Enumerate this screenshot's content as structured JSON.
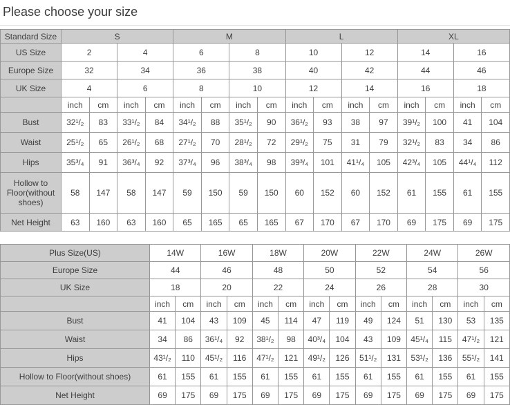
{
  "title": "Please choose your size",
  "colors": {
    "header_bg": "#cdcdcd",
    "border": "#979797",
    "text": "#3e3e3e"
  },
  "standard_table": {
    "header_label": "Standard Size",
    "size_groups": [
      "S",
      "M",
      "L",
      "XL"
    ],
    "us_size": {
      "label": "US Size",
      "values": [
        "2",
        "4",
        "6",
        "8",
        "10",
        "12",
        "14",
        "16"
      ]
    },
    "europe_size": {
      "label": "Europe Size",
      "values": [
        "32",
        "34",
        "36",
        "38",
        "40",
        "42",
        "44",
        "46"
      ]
    },
    "uk_size": {
      "label": "UK Size",
      "values": [
        "4",
        "6",
        "8",
        "10",
        "12",
        "14",
        "16",
        "18"
      ]
    },
    "units": [
      "inch",
      "cm",
      "inch",
      "cm",
      "inch",
      "cm",
      "inch",
      "cm",
      "inch",
      "cm",
      "inch",
      "cm",
      "inch",
      "cm",
      "inch",
      "cm"
    ],
    "bust": {
      "label": "Bust",
      "values": [
        "32¹/₂",
        "83",
        "33¹/₂",
        "84",
        "34¹/₂",
        "88",
        "35¹/₂",
        "90",
        "36¹/₂",
        "93",
        "38",
        "97",
        "39¹/₂",
        "100",
        "41",
        "104"
      ]
    },
    "waist": {
      "label": "Waist",
      "values": [
        "25¹/₂",
        "65",
        "26¹/₂",
        "68",
        "27¹/₂",
        "70",
        "28¹/₂",
        "72",
        "29¹/₂",
        "75",
        "31",
        "79",
        "32¹/₂",
        "83",
        "34",
        "86"
      ]
    },
    "hips": {
      "label": "Hips",
      "values": [
        "35³/₄",
        "91",
        "36³/₄",
        "92",
        "37³/₄",
        "96",
        "38³/₄",
        "98",
        "39³/₄",
        "101",
        "41¹/₄",
        "105",
        "42³/₄",
        "105",
        "44¹/₄",
        "112"
      ]
    },
    "hollow": {
      "label": "Hollow to Floor(without shoes)",
      "values": [
        "58",
        "147",
        "58",
        "147",
        "59",
        "150",
        "59",
        "150",
        "60",
        "152",
        "60",
        "152",
        "61",
        "155",
        "61",
        "155"
      ]
    },
    "net_height": {
      "label": "Net Height",
      "values": [
        "63",
        "160",
        "63",
        "160",
        "65",
        "165",
        "65",
        "165",
        "67",
        "170",
        "67",
        "170",
        "69",
        "175",
        "69",
        "175"
      ]
    }
  },
  "plus_table": {
    "header_label": "Plus Size(US)",
    "size_groups": [
      "14W",
      "16W",
      "18W",
      "20W",
      "22W",
      "24W",
      "26W"
    ],
    "europe_size": {
      "label": "Europe Size",
      "values": [
        "44",
        "46",
        "48",
        "50",
        "52",
        "54",
        "56"
      ]
    },
    "uk_size": {
      "label": "UK Size",
      "values": [
        "18",
        "20",
        "22",
        "24",
        "26",
        "28",
        "30"
      ]
    },
    "units": [
      "inch",
      "cm",
      "inch",
      "cm",
      "inch",
      "cm",
      "inch",
      "cm",
      "inch",
      "cm",
      "inch",
      "cm",
      "inch",
      "cm"
    ],
    "bust": {
      "label": "Bust",
      "values": [
        "41",
        "104",
        "43",
        "109",
        "45",
        "114",
        "47",
        "119",
        "49",
        "124",
        "51",
        "130",
        "53",
        "135"
      ]
    },
    "waist": {
      "label": "Waist",
      "values": [
        "34",
        "86",
        "36¹/₄",
        "92",
        "38¹/₂",
        "98",
        "40³/₄",
        "104",
        "43",
        "109",
        "45¹/₄",
        "115",
        "47¹/₂",
        "121"
      ]
    },
    "hips": {
      "label": "Hips",
      "values": [
        "43¹/₂",
        "110",
        "45¹/₂",
        "116",
        "47¹/₂",
        "121",
        "49¹/₂",
        "126",
        "51¹/₂",
        "131",
        "53¹/₂",
        "136",
        "55¹/₂",
        "141"
      ]
    },
    "hollow": {
      "label": "Hollow to Floor(without shoes)",
      "values": [
        "61",
        "155",
        "61",
        "155",
        "61",
        "155",
        "61",
        "155",
        "61",
        "155",
        "61",
        "155",
        "61",
        "155"
      ]
    },
    "net_height": {
      "label": "Net Height",
      "values": [
        "69",
        "175",
        "69",
        "175",
        "69",
        "175",
        "69",
        "175",
        "69",
        "175",
        "69",
        "175",
        "69",
        "175"
      ]
    }
  }
}
